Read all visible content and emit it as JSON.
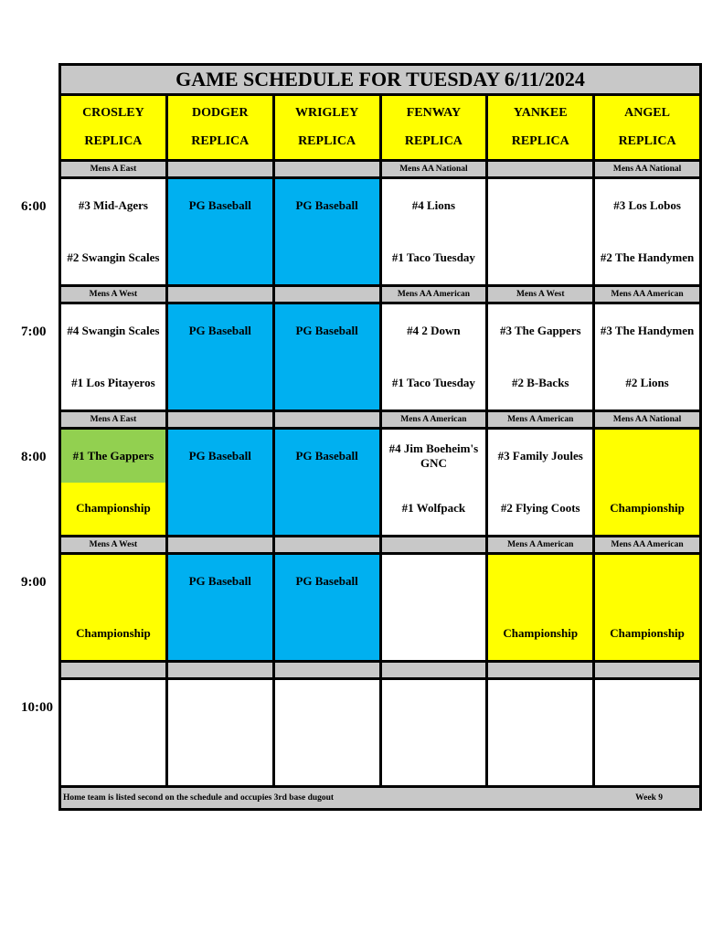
{
  "title": "GAME SCHEDULE FOR TUESDAY 6/11/2024",
  "colors": {
    "yellow": "#ffff00",
    "blue": "#00b0f0",
    "green": "#92d050",
    "white": "#ffffff",
    "gray": "#c8c8c8"
  },
  "fields": [
    {
      "name": "CROSLEY",
      "sub": "REPLICA"
    },
    {
      "name": "DODGER",
      "sub": "REPLICA"
    },
    {
      "name": "WRIGLEY",
      "sub": "REPLICA"
    },
    {
      "name": "FENWAY",
      "sub": "REPLICA"
    },
    {
      "name": "YANKEE",
      "sub": "REPLICA"
    },
    {
      "name": "ANGEL",
      "sub": "REPLICA"
    }
  ],
  "slots": [
    {
      "time": "6:00",
      "labels": [
        "Mens A East",
        "",
        "",
        "Mens AA National",
        "",
        "Mens AA National"
      ],
      "cells": [
        {
          "top": "#3 Mid-Agers",
          "bottom": "#2 Swangin Scales",
          "top_color": "white",
          "bottom_color": "white"
        },
        {
          "top": "PG Baseball",
          "bottom": "",
          "top_color": "blue",
          "bottom_color": "blue"
        },
        {
          "top": "PG Baseball",
          "bottom": "",
          "top_color": "blue",
          "bottom_color": "blue"
        },
        {
          "top": "#4 Lions",
          "bottom": "#1 Taco Tuesday",
          "top_color": "white",
          "bottom_color": "white"
        },
        {
          "top": "",
          "bottom": "",
          "top_color": "white",
          "bottom_color": "white"
        },
        {
          "top": "#3 Los Lobos",
          "bottom": "#2 The Handymen",
          "top_color": "white",
          "bottom_color": "white"
        }
      ]
    },
    {
      "time": "7:00",
      "labels": [
        "Mens A West",
        "",
        "",
        "Mens AA American",
        "Mens A West",
        "Mens AA American"
      ],
      "cells": [
        {
          "top": "#4 Swangin Scales",
          "bottom": "#1 Los Pitayeros",
          "top_color": "white",
          "bottom_color": "white"
        },
        {
          "top": "PG Baseball",
          "bottom": "",
          "top_color": "blue",
          "bottom_color": "blue"
        },
        {
          "top": "PG Baseball",
          "bottom": "",
          "top_color": "blue",
          "bottom_color": "blue"
        },
        {
          "top": "#4 2 Down",
          "bottom": "#1 Taco Tuesday",
          "top_color": "white",
          "bottom_color": "white"
        },
        {
          "top": "#3 The Gappers",
          "bottom": "#2 B-Backs",
          "top_color": "white",
          "bottom_color": "white"
        },
        {
          "top": "#3 The Handymen",
          "bottom": "#2 Lions",
          "top_color": "white",
          "bottom_color": "white"
        }
      ]
    },
    {
      "time": "8:00",
      "labels": [
        "Mens A East",
        "",
        "",
        "Mens A American",
        "Mens A American",
        "Mens AA National"
      ],
      "cells": [
        {
          "top": "#1 The Gappers",
          "bottom": "Championship",
          "top_color": "green",
          "bottom_color": "yellow"
        },
        {
          "top": "PG Baseball",
          "bottom": "",
          "top_color": "blue",
          "bottom_color": "blue"
        },
        {
          "top": "PG Baseball",
          "bottom": "",
          "top_color": "blue",
          "bottom_color": "blue"
        },
        {
          "top": "#4 Jim Boeheim's GNC",
          "bottom": "#1 Wolfpack",
          "top_color": "white",
          "bottom_color": "white"
        },
        {
          "top": "#3 Family Joules",
          "bottom": "#2 Flying Coots",
          "top_color": "white",
          "bottom_color": "white"
        },
        {
          "top": "",
          "bottom": "Championship",
          "top_color": "yellow",
          "bottom_color": "yellow"
        }
      ]
    },
    {
      "time": "9:00",
      "labels": [
        "Mens A West",
        "",
        "",
        "",
        "Mens A American",
        "Mens AA American"
      ],
      "cells": [
        {
          "top": "",
          "bottom": "Championship",
          "top_color": "yellow",
          "bottom_color": "yellow"
        },
        {
          "top": "PG Baseball",
          "bottom": "",
          "top_color": "blue",
          "bottom_color": "blue"
        },
        {
          "top": "PG Baseball",
          "bottom": "",
          "top_color": "blue",
          "bottom_color": "blue"
        },
        {
          "top": "",
          "bottom": "",
          "top_color": "white",
          "bottom_color": "white"
        },
        {
          "top": "",
          "bottom": "Championship",
          "top_color": "yellow",
          "bottom_color": "yellow"
        },
        {
          "top": "",
          "bottom": "Championship",
          "top_color": "yellow",
          "bottom_color": "yellow"
        }
      ]
    },
    {
      "time": "10:00",
      "labels": [
        "",
        "",
        "",
        "",
        "",
        ""
      ],
      "cells": [
        {
          "top": "",
          "bottom": "",
          "top_color": "white",
          "bottom_color": "white"
        },
        {
          "top": "",
          "bottom": "",
          "top_color": "white",
          "bottom_color": "white"
        },
        {
          "top": "",
          "bottom": "",
          "top_color": "white",
          "bottom_color": "white"
        },
        {
          "top": "",
          "bottom": "",
          "top_color": "white",
          "bottom_color": "white"
        },
        {
          "top": "",
          "bottom": "",
          "top_color": "white",
          "bottom_color": "white"
        },
        {
          "top": "",
          "bottom": "",
          "top_color": "white",
          "bottom_color": "white"
        }
      ]
    }
  ],
  "footer": {
    "note": "Home team is listed second on the schedule and occupies 3rd base dugout",
    "week": "Week 9"
  }
}
